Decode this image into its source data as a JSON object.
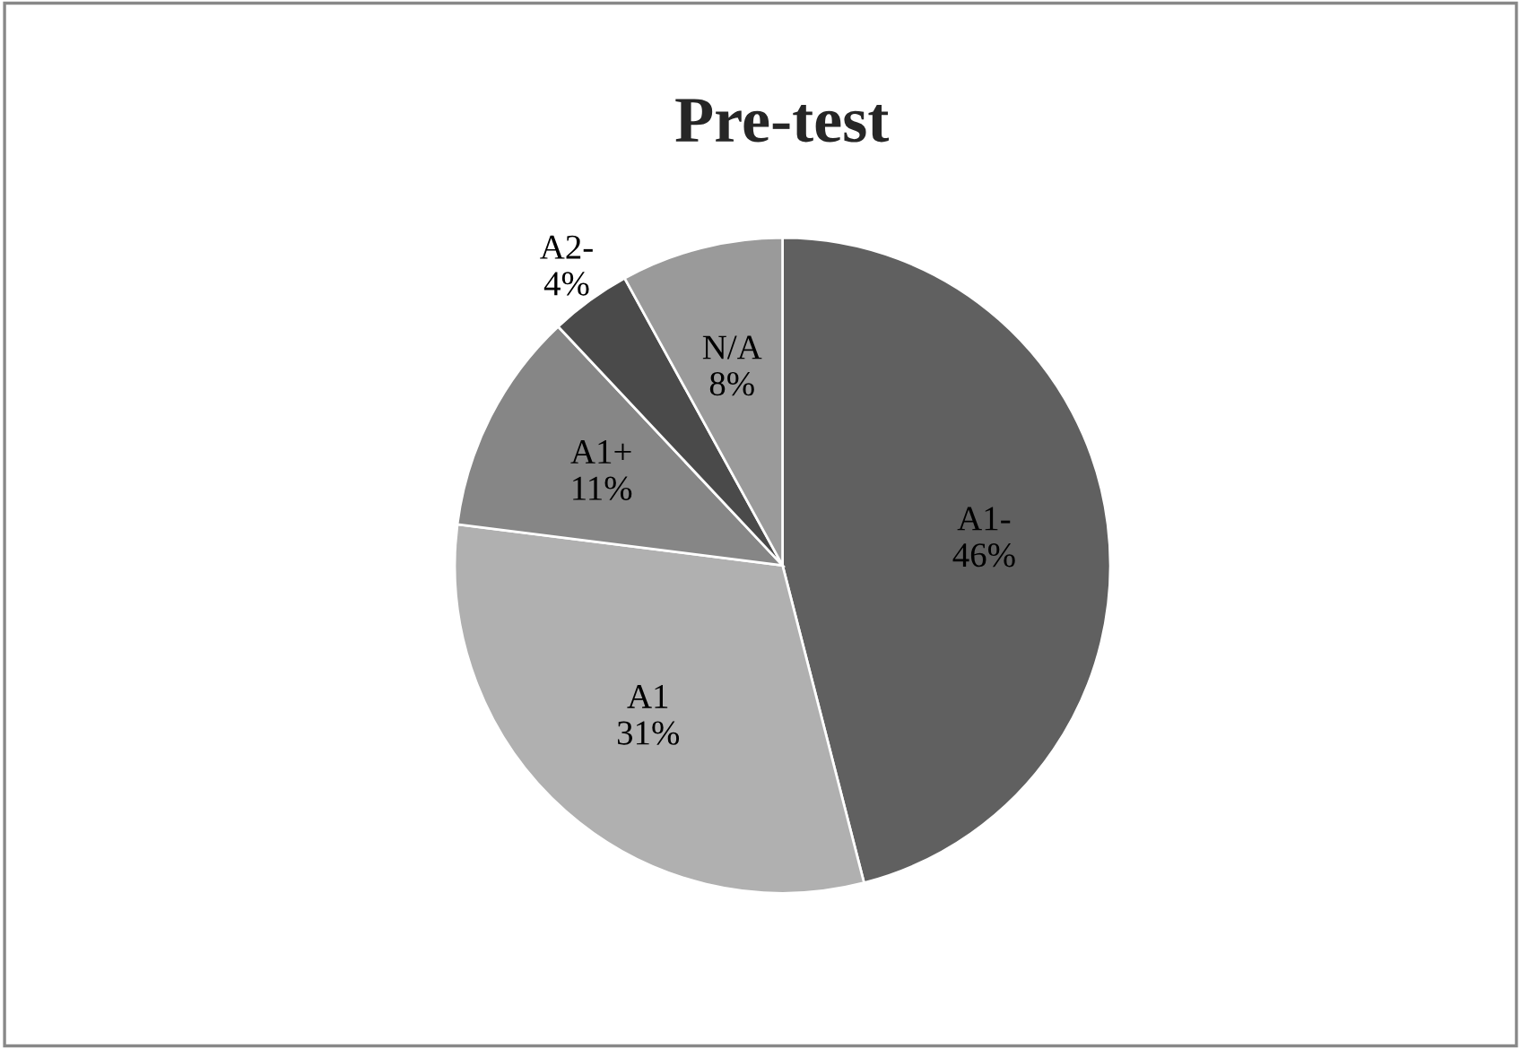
{
  "chart_data": {
    "type": "pie",
    "title": "Pre-test",
    "categories": [
      "A1-",
      "A1",
      "A1+",
      "A2-",
      "N/A"
    ],
    "values": [
      46,
      31,
      11,
      4,
      8
    ],
    "colors": [
      "#606060",
      "#b0b0b0",
      "#868686",
      "#4a4a4a",
      "#9a9a9a"
    ],
    "value_labels": [
      "46%",
      "31%",
      "11%",
      "4%",
      "8%"
    ],
    "legend": false
  }
}
